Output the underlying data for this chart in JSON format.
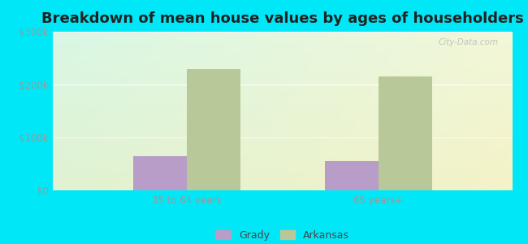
{
  "title": "Breakdown of mean house values by ages of householders",
  "categories": [
    "35 to 64 years",
    "65 years+"
  ],
  "grady_values": [
    65000,
    55000
  ],
  "arkansas_values": [
    230000,
    215000
  ],
  "grady_color": "#b89dc8",
  "arkansas_color": "#b8c898",
  "ylim": [
    0,
    300000
  ],
  "yticks": [
    0,
    100000,
    200000,
    300000
  ],
  "ytick_labels": [
    "$0",
    "$100k",
    "$200k",
    "$300k"
  ],
  "background_color": "#00e8f8",
  "title_fontsize": 13,
  "legend_labels": [
    "Grady",
    "Arkansas"
  ],
  "bar_width": 0.28,
  "watermark": "City-Data.com",
  "tick_color": "#999999",
  "grid_color": "#ddeecc"
}
